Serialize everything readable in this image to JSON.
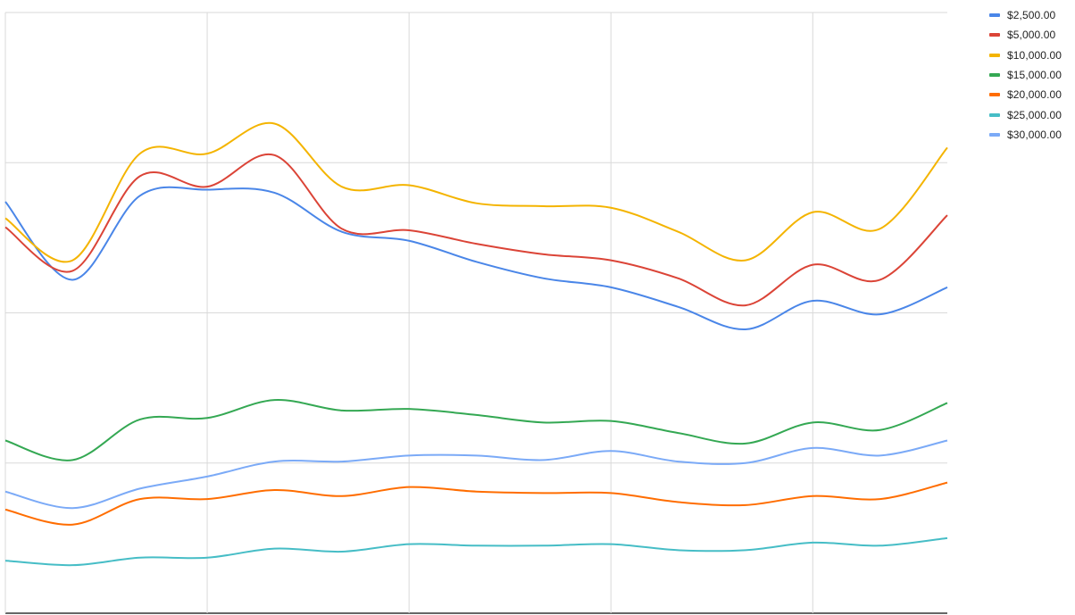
{
  "chart_data": {
    "type": "line",
    "title": "",
    "xlabel": "",
    "ylabel": "",
    "smooth": true,
    "grid": true,
    "ylim": [
      0,
      4
    ],
    "x": [
      0,
      1,
      2,
      3,
      4,
      5,
      6,
      7,
      8,
      9,
      10,
      11,
      12,
      13,
      14
    ],
    "legend_position": "right",
    "series": [
      {
        "name": "$2,500.00",
        "color": "#4a86e8",
        "values": [
          2.74,
          2.22,
          2.78,
          2.82,
          2.8,
          2.54,
          2.48,
          2.34,
          2.23,
          2.17,
          2.04,
          1.89,
          2.08,
          1.99,
          2.17
        ]
      },
      {
        "name": "$5,000.00",
        "color": "#db4437",
        "values": [
          2.57,
          2.28,
          2.91,
          2.84,
          3.05,
          2.56,
          2.55,
          2.46,
          2.39,
          2.35,
          2.23,
          2.05,
          2.32,
          2.22,
          2.65
        ]
      },
      {
        "name": "$10,000.00",
        "color": "#f4b400",
        "values": [
          2.63,
          2.35,
          3.06,
          3.06,
          3.26,
          2.84,
          2.85,
          2.73,
          2.71,
          2.7,
          2.54,
          2.35,
          2.67,
          2.56,
          3.1
        ]
      },
      {
        "name": "$15,000.00",
        "color": "#34a853",
        "values": [
          1.15,
          1.02,
          1.29,
          1.3,
          1.42,
          1.35,
          1.36,
          1.32,
          1.27,
          1.28,
          1.2,
          1.13,
          1.27,
          1.22,
          1.4
        ]
      },
      {
        "name": "$20,000.00",
        "color": "#ff6d00",
        "values": [
          0.69,
          0.59,
          0.76,
          0.76,
          0.82,
          0.78,
          0.84,
          0.81,
          0.8,
          0.8,
          0.74,
          0.72,
          0.78,
          0.76,
          0.87
        ]
      },
      {
        "name": "$25,000.00",
        "color": "#46bdc6",
        "values": [
          0.35,
          0.32,
          0.37,
          0.37,
          0.43,
          0.41,
          0.46,
          0.45,
          0.45,
          0.46,
          0.42,
          0.42,
          0.47,
          0.45,
          0.5
        ]
      },
      {
        "name": "$30,000.00",
        "color": "#7baaf7",
        "values": [
          0.81,
          0.7,
          0.83,
          0.91,
          1.01,
          1.01,
          1.05,
          1.05,
          1.02,
          1.08,
          1.01,
          1.0,
          1.1,
          1.05,
          1.15
        ]
      }
    ]
  }
}
